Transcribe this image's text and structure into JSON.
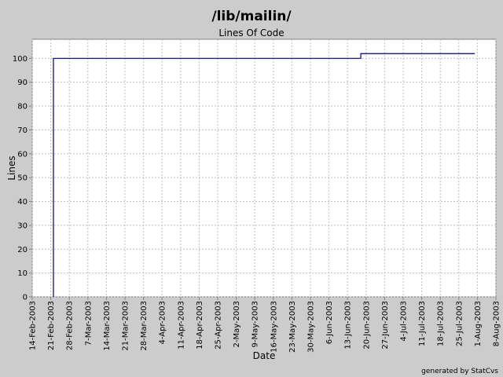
{
  "chart_data": {
    "type": "line",
    "title": "/lib/mailin/",
    "subtitle": "Lines Of Code",
    "x_label": "Date",
    "y_label": "Lines",
    "footer": "generated by StatCvs",
    "x": [
      "2003-02-22",
      "2003-02-22",
      "2003-06-18",
      "2003-06-18",
      "2003-07-31"
    ],
    "series": [
      {
        "name": "Lines",
        "color": "#000080",
        "values": [
          0,
          100,
          100,
          102,
          102
        ]
      }
    ],
    "xlim": [
      "2003-02-14",
      "2003-08-08"
    ],
    "xticks": [
      {
        "value": "2003-02-14",
        "label": "14-Feb-2003"
      },
      {
        "value": "2003-02-21",
        "label": "21-Feb-2003"
      },
      {
        "value": "2003-02-28",
        "label": "28-Feb-2003"
      },
      {
        "value": "2003-03-07",
        "label": "7-Mar-2003"
      },
      {
        "value": "2003-03-14",
        "label": "14-Mar-2003"
      },
      {
        "value": "2003-03-21",
        "label": "21-Mar-2003"
      },
      {
        "value": "2003-03-28",
        "label": "28-Mar-2003"
      },
      {
        "value": "2003-04-04",
        "label": "4-Apr-2003"
      },
      {
        "value": "2003-04-11",
        "label": "11-Apr-2003"
      },
      {
        "value": "2003-04-18",
        "label": "18-Apr-2003"
      },
      {
        "value": "2003-04-25",
        "label": "25-Apr-2003"
      },
      {
        "value": "2003-05-02",
        "label": "2-May-2003"
      },
      {
        "value": "2003-05-09",
        "label": "9-May-2003"
      },
      {
        "value": "2003-05-16",
        "label": "16-May-2003"
      },
      {
        "value": "2003-05-23",
        "label": "23-May-2003"
      },
      {
        "value": "2003-05-30",
        "label": "30-May-2003"
      },
      {
        "value": "2003-06-06",
        "label": "6-Jun-2003"
      },
      {
        "value": "2003-06-13",
        "label": "13-Jun-2003"
      },
      {
        "value": "2003-06-20",
        "label": "20-Jun-2003"
      },
      {
        "value": "2003-06-27",
        "label": "27-Jun-2003"
      },
      {
        "value": "2003-07-04",
        "label": "4-Jul-2003"
      },
      {
        "value": "2003-07-11",
        "label": "11-Jul-2003"
      },
      {
        "value": "2003-07-18",
        "label": "18-Jul-2003"
      },
      {
        "value": "2003-07-25",
        "label": "25-Jul-2003"
      },
      {
        "value": "2003-08-01",
        "label": "1-Aug-2003"
      },
      {
        "value": "2003-08-08",
        "label": "8-Aug-2003"
      }
    ],
    "ylim": [
      0,
      108
    ],
    "yticks": [
      0,
      10,
      20,
      30,
      40,
      50,
      60,
      70,
      80,
      90,
      100
    ],
    "grid": true
  }
}
